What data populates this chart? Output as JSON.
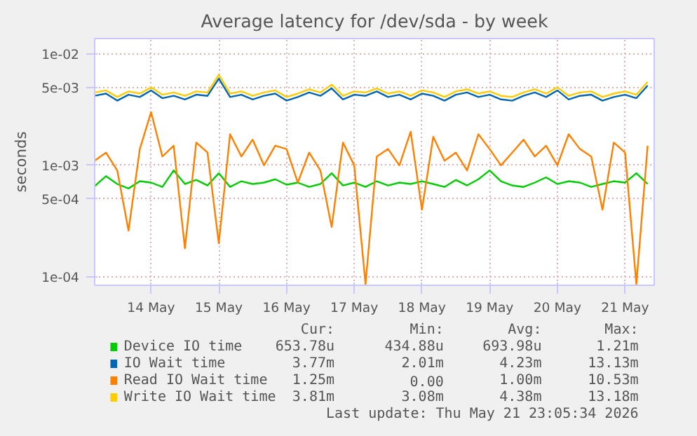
{
  "chart_data": {
    "type": "line",
    "title": "Average latency for /dev/sda - by week",
    "ylabel": "seconds",
    "log": "y",
    "grid": true,
    "legend": "bottom",
    "xlim": [
      "2026-05-13T16:00",
      "2026-05-21T22:20"
    ],
    "ylim": [
      8.4e-05,
      0.0137
    ],
    "xticks": [
      {
        "value": "2026-05-14T12:00",
        "label": "14 May"
      },
      {
        "value": "2026-05-15T12:00",
        "label": "15 May"
      },
      {
        "value": "2026-05-16T12:00",
        "label": "16 May"
      },
      {
        "value": "2026-05-17T12:00",
        "label": "17 May"
      },
      {
        "value": "2026-05-18T12:00",
        "label": "18 May"
      },
      {
        "value": "2026-05-19T12:00",
        "label": "19 May"
      },
      {
        "value": "2026-05-20T12:00",
        "label": "20 May"
      },
      {
        "value": "2026-05-21T12:00",
        "label": "21 May"
      }
    ],
    "yticks": [
      {
        "value": 0.0001,
        "label": "1e-04"
      },
      {
        "value": 0.0005,
        "label": "5e-04"
      },
      {
        "value": 0.001,
        "label": "1e-03"
      },
      {
        "value": 0.005,
        "label": "5e-03"
      },
      {
        "value": 0.01,
        "label": "1e-02"
      }
    ],
    "x": [
      "2026-05-13T16:00",
      "2026-05-13T20:00",
      "2026-05-14T00:00",
      "2026-05-14T04:00",
      "2026-05-14T08:00",
      "2026-05-14T12:00",
      "2026-05-14T16:00",
      "2026-05-14T20:00",
      "2026-05-15T00:00",
      "2026-05-15T04:00",
      "2026-05-15T08:00",
      "2026-05-15T12:00",
      "2026-05-15T16:00",
      "2026-05-15T20:00",
      "2026-05-16T00:00",
      "2026-05-16T04:00",
      "2026-05-16T08:00",
      "2026-05-16T12:00",
      "2026-05-16T16:00",
      "2026-05-16T20:00",
      "2026-05-17T00:00",
      "2026-05-17T04:00",
      "2026-05-17T08:00",
      "2026-05-17T12:00",
      "2026-05-17T16:00",
      "2026-05-17T20:00",
      "2026-05-18T00:00",
      "2026-05-18T04:00",
      "2026-05-18T08:00",
      "2026-05-18T12:00",
      "2026-05-18T16:00",
      "2026-05-18T20:00",
      "2026-05-19T00:00",
      "2026-05-19T04:00",
      "2026-05-19T08:00",
      "2026-05-19T12:00",
      "2026-05-19T16:00",
      "2026-05-19T20:00",
      "2026-05-20T00:00",
      "2026-05-20T04:00",
      "2026-05-20T08:00",
      "2026-05-20T12:00",
      "2026-05-20T16:00",
      "2026-05-20T20:00",
      "2026-05-21T00:00",
      "2026-05-21T04:00",
      "2026-05-21T08:00",
      "2026-05-21T12:00",
      "2026-05-21T16:00",
      "2026-05-21T20:00"
    ],
    "series": [
      {
        "name": "Device IO time",
        "color": "#00cc00",
        "values": [
          0.00065,
          0.0008,
          0.00068,
          0.00062,
          0.00072,
          0.0007,
          0.00064,
          0.0009,
          0.00068,
          0.00074,
          0.00066,
          0.00085,
          0.00064,
          0.00072,
          0.00068,
          0.0007,
          0.00075,
          0.00067,
          0.0007,
          0.00064,
          0.00068,
          0.00085,
          0.00066,
          0.0007,
          0.00064,
          0.00072,
          0.00066,
          0.0007,
          0.00068,
          0.00072,
          0.00068,
          0.00064,
          0.00074,
          0.00066,
          0.00075,
          0.0009,
          0.00072,
          0.00066,
          0.00064,
          0.0007,
          0.00078,
          0.00068,
          0.00072,
          0.0007,
          0.00064,
          0.00068,
          0.00072,
          0.0007,
          0.00085,
          0.00068
        ]
      },
      {
        "name": "IO Wait time",
        "color": "#0066b3",
        "values": [
          0.0042,
          0.0044,
          0.0038,
          0.0043,
          0.0041,
          0.0047,
          0.004,
          0.0042,
          0.0039,
          0.0043,
          0.0042,
          0.006,
          0.0041,
          0.0043,
          0.0039,
          0.0042,
          0.0044,
          0.0038,
          0.0041,
          0.0045,
          0.0042,
          0.0049,
          0.0039,
          0.0043,
          0.0042,
          0.0046,
          0.0041,
          0.0043,
          0.0039,
          0.0044,
          0.0042,
          0.0038,
          0.0043,
          0.0045,
          0.0041,
          0.0043,
          0.0039,
          0.0038,
          0.0042,
          0.0045,
          0.0041,
          0.0047,
          0.0039,
          0.0042,
          0.0043,
          0.0038,
          0.0041,
          0.0043,
          0.004,
          0.0052
        ]
      },
      {
        "name": "Read IO Wait time",
        "color": "#ff8000",
        "values": [
          0.0011,
          0.0013,
          0.0009,
          0.00026,
          0.0014,
          0.003,
          0.0012,
          0.0015,
          0.00018,
          0.0016,
          0.0013,
          0.0002,
          0.0019,
          0.0012,
          0.0017,
          0.001,
          0.0015,
          0.0014,
          0.0007,
          0.0013,
          0.0009,
          0.00028,
          0.0016,
          0.001,
          8.6e-05,
          0.0012,
          0.0014,
          0.001,
          0.002,
          0.0004,
          0.0018,
          0.0011,
          0.0013,
          0.0009,
          0.0019,
          0.0014,
          0.001,
          0.0013,
          0.0017,
          0.0012,
          0.0015,
          0.001,
          0.0019,
          0.0014,
          0.0012,
          0.0004,
          0.0016,
          0.0013,
          8.6e-05,
          0.0015
        ]
      },
      {
        "name": "Write IO Wait time",
        "color": "#ffcc00",
        "values": [
          0.0045,
          0.0047,
          0.0041,
          0.0046,
          0.0044,
          0.005,
          0.0043,
          0.0045,
          0.0042,
          0.0046,
          0.0045,
          0.0065,
          0.0044,
          0.0046,
          0.0042,
          0.0045,
          0.0047,
          0.0041,
          0.0044,
          0.0048,
          0.0045,
          0.0053,
          0.0042,
          0.0046,
          0.0045,
          0.0049,
          0.0044,
          0.0046,
          0.0042,
          0.0047,
          0.0045,
          0.0041,
          0.0046,
          0.0048,
          0.0044,
          0.0046,
          0.0042,
          0.0041,
          0.0045,
          0.0048,
          0.0044,
          0.005,
          0.0042,
          0.0045,
          0.0046,
          0.0041,
          0.0044,
          0.0046,
          0.0043,
          0.0056
        ]
      }
    ],
    "annotations": [
      "Cur:",
      "Min:",
      "Avg:",
      "Max:",
      "653.78u",
      "434.88u",
      "693.98u",
      "1.21m",
      "3.77m",
      "2.01m",
      "4.23m",
      "13.13m",
      "1.25m",
      "0.00",
      "1.00m",
      "10.53m",
      "3.81m",
      "3.08m",
      "4.38m",
      "13.18m",
      "Last update: Thu May 21 23:05:34 2026"
    ]
  }
}
